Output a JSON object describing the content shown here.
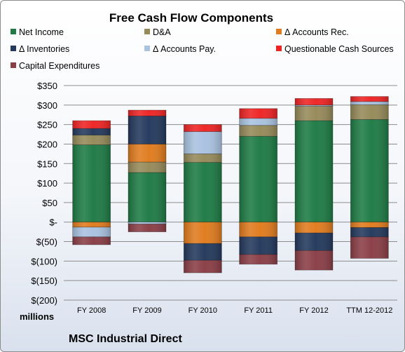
{
  "chart_data": {
    "type": "bar",
    "stacked": true,
    "title": "Free Cash Flow Components",
    "units_label": "millions",
    "company": "MSC Industrial Direct",
    "ylim": [
      -200,
      350
    ],
    "y_ticks": [
      {
        "value": 350,
        "label": "$350"
      },
      {
        "value": 300,
        "label": "$300"
      },
      {
        "value": 250,
        "label": "$250"
      },
      {
        "value": 200,
        "label": "$200"
      },
      {
        "value": 150,
        "label": "$150"
      },
      {
        "value": 100,
        "label": "$100"
      },
      {
        "value": 50,
        "label": "$50"
      },
      {
        "value": 0,
        "label": "$-"
      },
      {
        "value": -50,
        "label": "$(50)"
      },
      {
        "value": -100,
        "label": "$(100)"
      },
      {
        "value": -150,
        "label": "$(150)"
      },
      {
        "value": -200,
        "label": "$(200)"
      }
    ],
    "categories": [
      "FY 2008",
      "FY 2009",
      "FY 2010",
      "FY 2011",
      "FY 2012",
      "TTM 12-2012"
    ],
    "legend_position": "top",
    "series": [
      {
        "name": "Net Income",
        "color": "#1e7b45",
        "values": [
          198,
          127,
          153,
          220,
          260,
          263
        ]
      },
      {
        "name": "D&A",
        "color": "#968a5a",
        "values": [
          25,
          27,
          22,
          28,
          37,
          38
        ]
      },
      {
        "name": "Δ Accounts Rec.",
        "color": "#e07b1e",
        "values": [
          -13,
          46,
          -55,
          -38,
          -28,
          -14
        ]
      },
      {
        "name": "Δ Inventories",
        "color": "#23395d",
        "values": [
          17,
          72,
          -43,
          -45,
          -45,
          -24
        ]
      },
      {
        "name": "Δ Accounts Pay.",
        "color": "#a9c2e0",
        "values": [
          -25,
          -5,
          57,
          18,
          3,
          8
        ]
      },
      {
        "name": "Questionable Cash Sources",
        "color": "#ee2424",
        "values": [
          20,
          15,
          18,
          25,
          17,
          13
        ]
      },
      {
        "name": "Capital Expenditures",
        "color": "#8a3e46",
        "values": [
          -20,
          -20,
          -32,
          -25,
          -50,
          -55
        ]
      }
    ]
  }
}
